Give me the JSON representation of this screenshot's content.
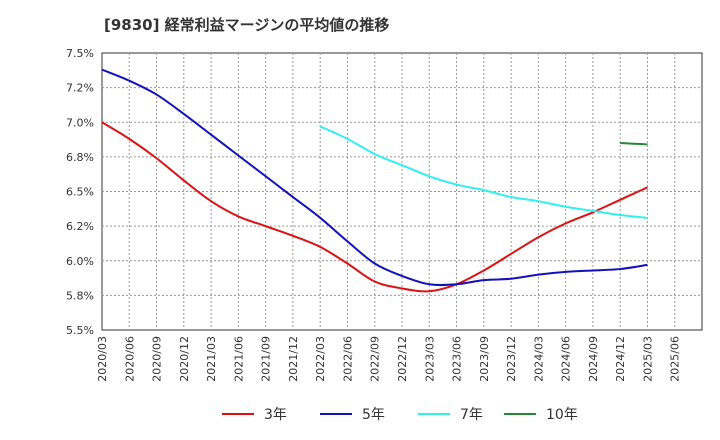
{
  "chart_data": {
    "type": "line",
    "title": "[9830]  経常利益マージンの平均値の推移",
    "xlabel": "",
    "ylabel": "",
    "x_categories": [
      "2020/03",
      "2020/06",
      "2020/09",
      "2020/12",
      "2021/03",
      "2021/06",
      "2021/09",
      "2021/12",
      "2022/03",
      "2022/06",
      "2022/09",
      "2022/12",
      "2023/03",
      "2023/06",
      "2023/09",
      "2023/12",
      "2024/03",
      "2024/06",
      "2024/09",
      "2024/12",
      "2025/03",
      "2025/06"
    ],
    "y_ticks": [
      5.5,
      5.75,
      6.0,
      6.25,
      6.5,
      6.75,
      7.0,
      7.25,
      7.5
    ],
    "y_tick_labels": [
      "5.5%",
      "5.8%",
      "6.0%",
      "6.2%",
      "6.5%",
      "6.8%",
      "7.0%",
      "7.2%",
      "7.5%"
    ],
    "ylim": [
      5.5,
      7.5
    ],
    "grid": true,
    "legend_position": "bottom",
    "series": [
      {
        "name": "3年",
        "color": "#dd1111",
        "points": [
          [
            "2020/03",
            7.0
          ],
          [
            "2020/06",
            6.88
          ],
          [
            "2020/09",
            6.74
          ],
          [
            "2020/12",
            6.58
          ],
          [
            "2021/03",
            6.43
          ],
          [
            "2021/06",
            6.32
          ],
          [
            "2021/09",
            6.25
          ],
          [
            "2021/12",
            6.18
          ],
          [
            "2022/03",
            6.1
          ],
          [
            "2022/06",
            5.98
          ],
          [
            "2022/09",
            5.85
          ],
          [
            "2022/12",
            5.8
          ],
          [
            "2023/03",
            5.78
          ],
          [
            "2023/06",
            5.83
          ],
          [
            "2023/09",
            5.93
          ],
          [
            "2023/12",
            6.05
          ],
          [
            "2024/03",
            6.17
          ],
          [
            "2024/06",
            6.27
          ],
          [
            "2024/09",
            6.35
          ],
          [
            "2024/12",
            6.44
          ],
          [
            "2025/03",
            6.53
          ]
        ]
      },
      {
        "name": "5年",
        "color": "#1111bb",
        "points": [
          [
            "2020/03",
            7.38
          ],
          [
            "2020/06",
            7.3
          ],
          [
            "2020/09",
            7.2
          ],
          [
            "2020/12",
            7.06
          ],
          [
            "2021/03",
            6.91
          ],
          [
            "2021/06",
            6.76
          ],
          [
            "2021/09",
            6.61
          ],
          [
            "2021/12",
            6.46
          ],
          [
            "2022/03",
            6.31
          ],
          [
            "2022/06",
            6.14
          ],
          [
            "2022/09",
            5.98
          ],
          [
            "2022/12",
            5.89
          ],
          [
            "2023/03",
            5.83
          ],
          [
            "2023/06",
            5.83
          ],
          [
            "2023/09",
            5.86
          ],
          [
            "2023/12",
            5.87
          ],
          [
            "2024/03",
            5.9
          ],
          [
            "2024/06",
            5.92
          ],
          [
            "2024/09",
            5.93
          ],
          [
            "2024/12",
            5.94
          ],
          [
            "2025/03",
            5.97
          ]
        ]
      },
      {
        "name": "7年",
        "color": "#33eeee",
        "points": [
          [
            "2022/03",
            6.97
          ],
          [
            "2022/06",
            6.88
          ],
          [
            "2022/09",
            6.77
          ],
          [
            "2022/12",
            6.69
          ],
          [
            "2023/03",
            6.61
          ],
          [
            "2023/06",
            6.55
          ],
          [
            "2023/09",
            6.51
          ],
          [
            "2023/12",
            6.46
          ],
          [
            "2024/03",
            6.43
          ],
          [
            "2024/06",
            6.39
          ],
          [
            "2024/09",
            6.36
          ],
          [
            "2024/12",
            6.33
          ],
          [
            "2025/03",
            6.31
          ]
        ]
      },
      {
        "name": "10年",
        "color": "#228833",
        "points": [
          [
            "2024/12",
            6.85
          ],
          [
            "2025/03",
            6.84
          ]
        ]
      }
    ]
  }
}
